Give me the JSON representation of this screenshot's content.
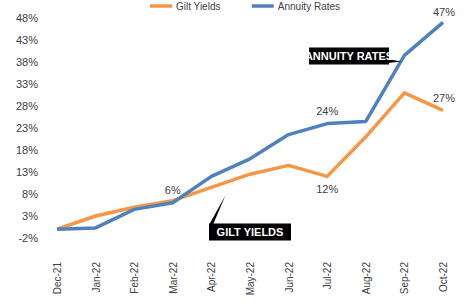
{
  "chart_data": {
    "type": "line",
    "categories": [
      "Dec-21",
      "Jan-22",
      "Feb-22",
      "Mar-22",
      "Apr-22",
      "May-22",
      "Jun-22",
      "Jul-22",
      "Aug-22",
      "Sep-22",
      "Oct-22"
    ],
    "series": [
      {
        "name": "Gilt Yields",
        "color": "#f79646",
        "values": [
          0,
          3,
          5,
          6.5,
          9.5,
          12.5,
          14.5,
          12,
          21,
          31,
          27
        ],
        "value_labels": [
          null,
          null,
          null,
          null,
          null,
          null,
          null,
          "12%",
          null,
          null,
          "27%"
        ]
      },
      {
        "name": "Annuity Rates",
        "color": "#4f81bd",
        "values": [
          0,
          0.3,
          4.5,
          6,
          12,
          16,
          21.5,
          24,
          24.5,
          39.5,
          47
        ],
        "value_labels": [
          null,
          null,
          null,
          "6%",
          null,
          null,
          null,
          "24%",
          null,
          null,
          "47%"
        ]
      }
    ],
    "annotations": [
      "ANNUITY RATES",
      "GILT YIELDS"
    ],
    "ylim": [
      -2,
      48
    ],
    "yticks": [
      {
        "value": -2,
        "label": "-2%"
      },
      {
        "value": 3,
        "label": "3%"
      },
      {
        "value": 8,
        "label": "8%"
      },
      {
        "value": 13,
        "label": "13%"
      },
      {
        "value": 18,
        "label": "18%"
      },
      {
        "value": 23,
        "label": "23%"
      },
      {
        "value": 28,
        "label": "28%"
      },
      {
        "value": 33,
        "label": "33%"
      },
      {
        "value": 38,
        "label": "38%"
      },
      {
        "value": 43,
        "label": "43%"
      },
      {
        "value": 48,
        "label": "48%"
      }
    ],
    "grid": false,
    "legend": "top"
  }
}
